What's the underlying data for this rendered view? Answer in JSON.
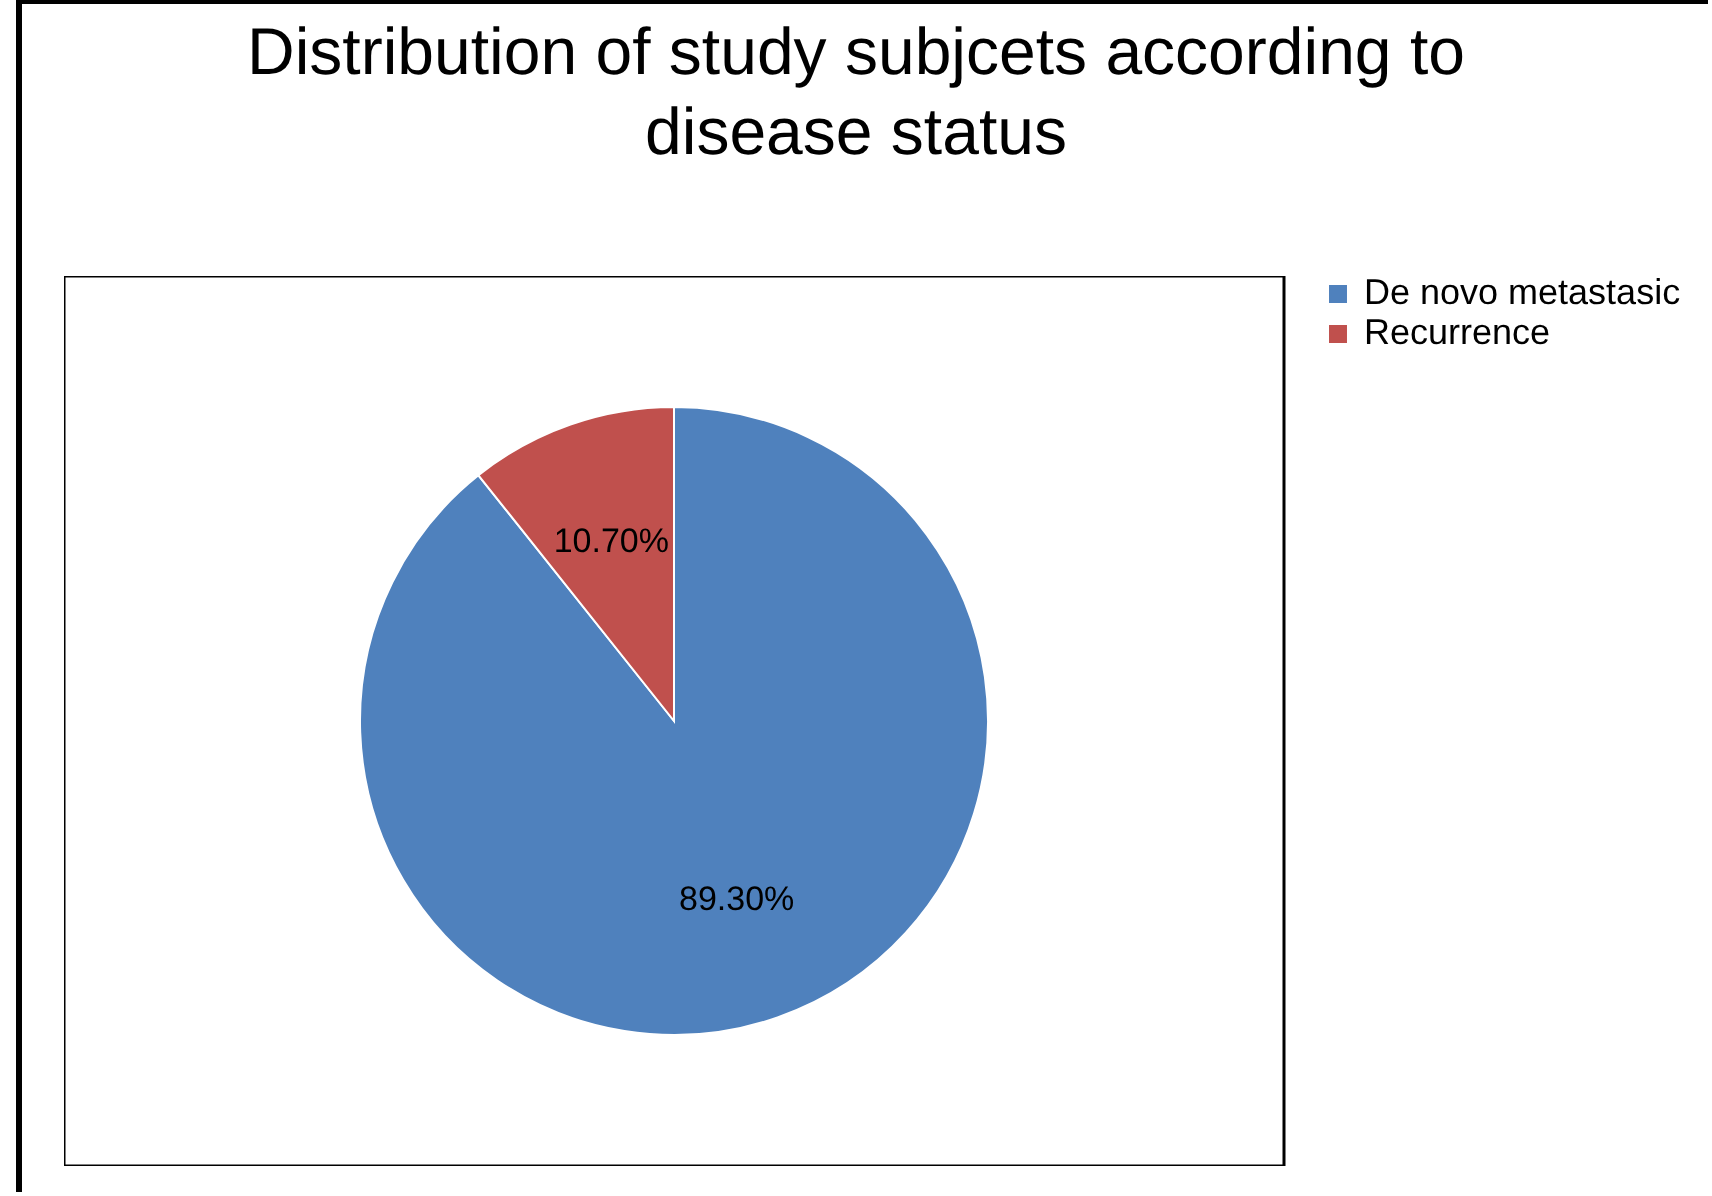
{
  "chart_data": {
    "type": "pie",
    "title": "Distribution of study subjcets according to disease status",
    "categories": [
      "De novo metastasic",
      "Recurrence"
    ],
    "values": [
      89.3,
      10.7
    ],
    "colors": [
      "#4f81bd",
      "#c0504d"
    ],
    "value_labels": [
      "89.30%",
      "10.70%"
    ],
    "legend": "right"
  }
}
